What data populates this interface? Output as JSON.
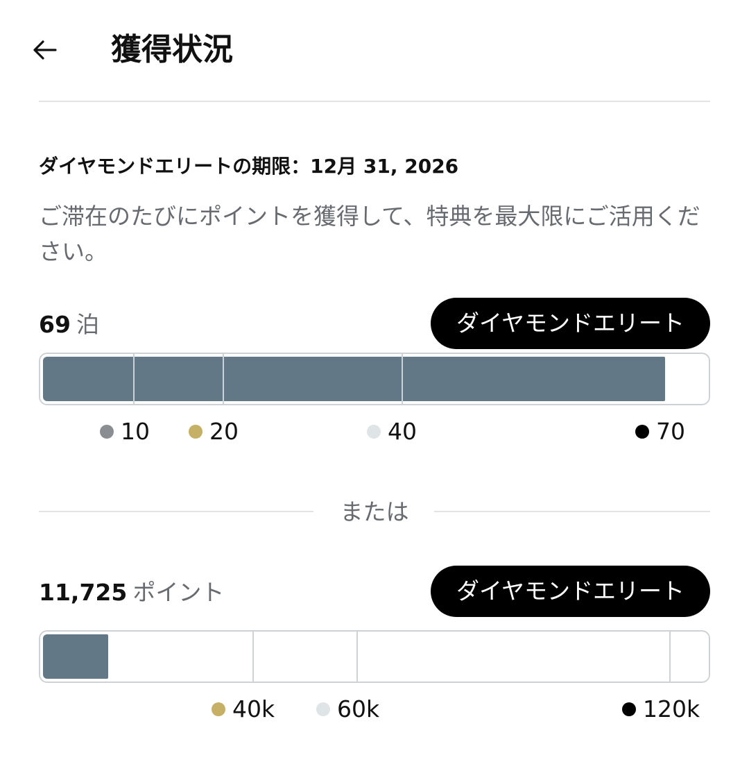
{
  "header": {
    "back_icon": "arrow-left-icon",
    "title": "獲得状況"
  },
  "expiry": "ダイヤモンドエリートの期限：12月 31, 2026",
  "description": "ご滞在のたびにポイントを獲得して、特典を最大限にご活用ください。",
  "nights": {
    "value": "69",
    "unit": "泊",
    "tier_label": "ダイヤモンドエリート",
    "progress": {
      "current": 69,
      "max": 70
    },
    "milestones": [
      {
        "label": "10",
        "color": "#8a8d91"
      },
      {
        "label": "20",
        "color": "#c6b066"
      },
      {
        "label": "40",
        "color": "#dfe4e6"
      },
      {
        "label": "70",
        "color": "#000000"
      }
    ]
  },
  "or_label": "または",
  "points": {
    "value": "11,725",
    "unit": "ポイント",
    "tier_label": "ダイヤモンドエリート",
    "progress": {
      "current": 11725,
      "max": 120000
    },
    "milestones": [
      {
        "label": "40k",
        "color": "#c6b066"
      },
      {
        "label": "60k",
        "color": "#dfe4e6"
      },
      {
        "label": "120k",
        "color": "#000000"
      }
    ]
  },
  "colors": {
    "progress_fill": "#627886",
    "badge_background": "#000000",
    "secondary_text": "#676b70"
  }
}
